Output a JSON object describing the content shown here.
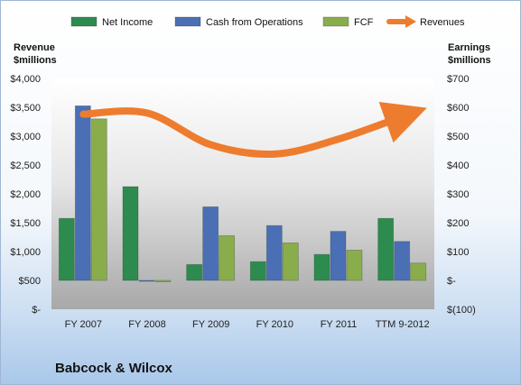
{
  "chart_data": {
    "type": "bar",
    "title": "Babcock & Wilcox",
    "categories": [
      "FY 2007",
      "FY 2008",
      "FY 2009",
      "FY 2010",
      "FY 2011",
      "TTM 9-2012"
    ],
    "left_axis": {
      "label_line1": "Revenue",
      "label_line2": "$millions",
      "ticks": [
        "$-",
        "$500",
        "$1,000",
        "$1,500",
        "$2,000",
        "$2,500",
        "$3,000",
        "$3,500",
        "$4,000"
      ],
      "range": [
        0,
        4000
      ]
    },
    "right_axis": {
      "label_line1": "Earnings",
      "label_line2": "$millions",
      "ticks": [
        "$(100)",
        "$-",
        "$100",
        "$200",
        "$300",
        "$400",
        "$500",
        "$600",
        "$700"
      ],
      "range": [
        -100,
        700
      ]
    },
    "series": [
      {
        "name": "Net Income",
        "axis": "right",
        "kind": "bar",
        "color": "#2e8b4f",
        "values": [
          215,
          325,
          55,
          65,
          90,
          215
        ]
      },
      {
        "name": "Cash from Operations",
        "axis": "right",
        "kind": "bar",
        "color": "#4a6fb5",
        "values": [
          605,
          0,
          255,
          190,
          170,
          135
        ]
      },
      {
        "name": "FCF",
        "axis": "right",
        "kind": "bar",
        "color": "#8aad4c",
        "values": [
          560,
          -5,
          155,
          130,
          105,
          60
        ]
      },
      {
        "name": "Revenues",
        "axis": "left",
        "kind": "line",
        "color": "#ee7c2e",
        "values": [
          3380,
          3400,
          2850,
          2690,
          2950,
          3340
        ]
      }
    ],
    "legend_position": "top",
    "grid": false
  }
}
